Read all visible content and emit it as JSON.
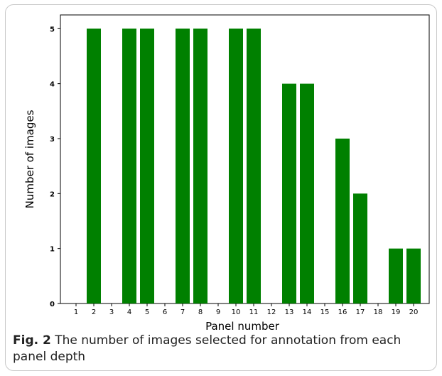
{
  "chart_data": {
    "type": "bar",
    "title": "",
    "xlabel": "Panel number",
    "ylabel": "Number of images",
    "categories": [
      "1",
      "2",
      "3",
      "4",
      "5",
      "6",
      "7",
      "8",
      "9",
      "10",
      "11",
      "12",
      "13",
      "14",
      "15",
      "16",
      "17",
      "18",
      "19",
      "20"
    ],
    "values": [
      0,
      5,
      0,
      5,
      5,
      0,
      5,
      5,
      0,
      5,
      5,
      0,
      4,
      4,
      0,
      3,
      2,
      0,
      1,
      1
    ],
    "ylim": [
      0,
      5
    ],
    "yticks": [
      "0",
      "1",
      "2",
      "3",
      "4",
      "5"
    ],
    "bar_color": "#008000",
    "grid": false
  },
  "caption": {
    "label": "Fig. 2",
    "text": "The number of images selected for annotation from each panel depth"
  }
}
